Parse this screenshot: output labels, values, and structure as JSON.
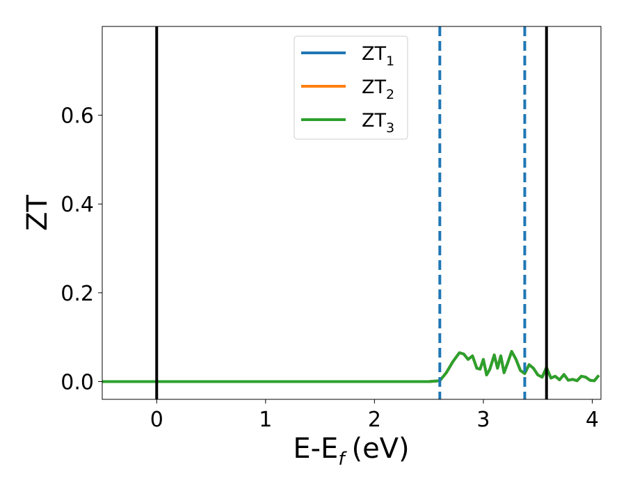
{
  "chart_data": {
    "type": "line",
    "xlabel": "E-E",
    "xlabel_sub": "f",
    "xlabel_unit": "(eV)",
    "ylabel": "ZT",
    "xlim": [
      -0.5,
      4.08
    ],
    "ylim": [
      -0.04,
      0.8
    ],
    "xticks": [
      0,
      1,
      2,
      3,
      4
    ],
    "xtick_labels": [
      "0",
      "1",
      "2",
      "3",
      "4"
    ],
    "yticks": [
      0.0,
      0.2,
      0.4,
      0.6
    ],
    "ytick_labels": [
      "0.0",
      "0.2",
      "0.4",
      "0.6"
    ],
    "grid": false,
    "legend_position": "top-center",
    "vlines_solid": [
      0.0,
      3.58
    ],
    "vlines_dashed": [
      2.6,
      3.38
    ],
    "vline_solid_color": "#000000",
    "vline_dashed_color": "#1f77b4",
    "series": [
      {
        "name": "ZT",
        "name_sub": "1",
        "color": "#1f77b4",
        "x": [
          -0.5,
          2.5,
          2.6,
          2.66,
          2.72,
          2.78,
          2.82,
          2.86,
          2.9,
          2.94,
          2.97,
          3.0,
          3.03,
          3.06,
          3.1,
          3.13,
          3.16,
          3.19,
          3.22,
          3.26,
          3.3,
          3.34,
          3.38,
          3.42,
          3.46,
          3.5,
          3.54,
          3.58,
          3.62,
          3.66,
          3.7,
          3.74,
          3.78,
          3.82,
          3.86,
          3.9,
          3.94,
          3.98,
          4.02,
          4.06
        ],
        "y": [
          0.0,
          0.0,
          0.002,
          0.02,
          0.045,
          0.065,
          0.062,
          0.05,
          0.058,
          0.03,
          0.028,
          0.05,
          0.015,
          0.028,
          0.06,
          0.03,
          0.058,
          0.02,
          0.04,
          0.068,
          0.05,
          0.025,
          0.018,
          0.038,
          0.03,
          0.015,
          0.01,
          0.032,
          0.008,
          0.012,
          0.004,
          0.016,
          0.003,
          0.005,
          0.002,
          0.012,
          0.01,
          0.003,
          0.002,
          0.014
        ]
      },
      {
        "name": "ZT",
        "name_sub": "2",
        "color": "#ff7f0e",
        "x": [
          -0.5,
          2.5,
          2.6,
          2.66,
          2.72,
          2.78,
          2.82,
          2.86,
          2.9,
          2.94,
          2.97,
          3.0,
          3.03,
          3.06,
          3.1,
          3.13,
          3.16,
          3.19,
          3.22,
          3.26,
          3.3,
          3.34,
          3.38,
          3.42,
          3.46,
          3.5,
          3.54,
          3.58,
          3.62,
          3.66,
          3.7,
          3.74,
          3.78,
          3.82,
          3.86,
          3.9,
          3.94,
          3.98,
          4.02,
          4.06
        ],
        "y": [
          0.0,
          0.0,
          0.002,
          0.02,
          0.045,
          0.065,
          0.062,
          0.05,
          0.058,
          0.03,
          0.028,
          0.05,
          0.015,
          0.028,
          0.06,
          0.03,
          0.058,
          0.02,
          0.04,
          0.068,
          0.05,
          0.025,
          0.018,
          0.038,
          0.03,
          0.015,
          0.01,
          0.032,
          0.008,
          0.012,
          0.004,
          0.016,
          0.003,
          0.005,
          0.002,
          0.012,
          0.01,
          0.003,
          0.002,
          0.014
        ]
      },
      {
        "name": "ZT",
        "name_sub": "3",
        "color": "#2ca02c",
        "x": [
          -0.5,
          2.5,
          2.6,
          2.66,
          2.72,
          2.78,
          2.82,
          2.86,
          2.9,
          2.94,
          2.97,
          3.0,
          3.03,
          3.06,
          3.1,
          3.13,
          3.16,
          3.19,
          3.22,
          3.26,
          3.3,
          3.34,
          3.38,
          3.42,
          3.46,
          3.5,
          3.54,
          3.58,
          3.62,
          3.66,
          3.7,
          3.74,
          3.78,
          3.82,
          3.86,
          3.9,
          3.94,
          3.98,
          4.02,
          4.06
        ],
        "y": [
          0.0,
          0.0,
          0.002,
          0.02,
          0.045,
          0.065,
          0.062,
          0.05,
          0.058,
          0.03,
          0.028,
          0.05,
          0.015,
          0.028,
          0.06,
          0.03,
          0.058,
          0.02,
          0.04,
          0.068,
          0.05,
          0.025,
          0.018,
          0.038,
          0.03,
          0.015,
          0.01,
          0.032,
          0.008,
          0.012,
          0.004,
          0.016,
          0.003,
          0.005,
          0.002,
          0.012,
          0.01,
          0.003,
          0.002,
          0.014
        ]
      }
    ]
  }
}
